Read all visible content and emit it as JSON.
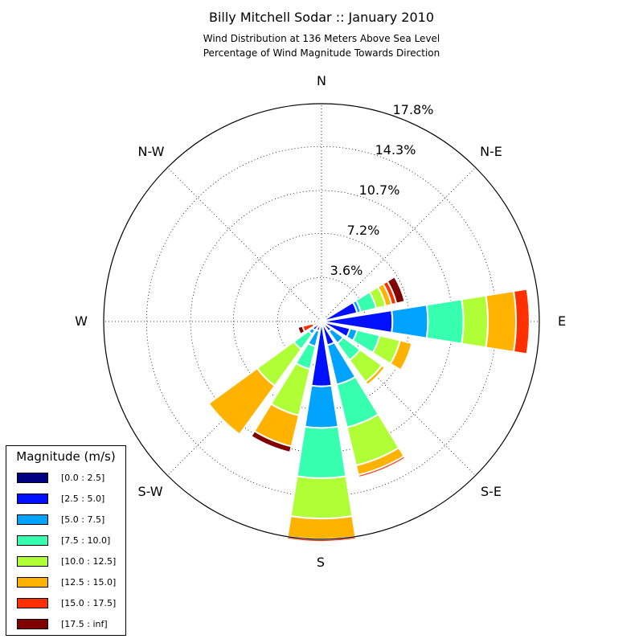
{
  "chart_data": {
    "type": "windrose",
    "title": "Billy Mitchell Sodar :: January 2010",
    "subtitles": [
      "Wind Distribution at 136 Meters Above Sea Level",
      "Percentage of Wind Magnitude Towards Direction"
    ],
    "directions": {
      "N": "N",
      "NE": "N-E",
      "E": "E",
      "SE": "S-E",
      "S": "S",
      "SW": "S-W",
      "W": "W",
      "NW": "N-W"
    },
    "radial_ticks": [
      "3.6%",
      "7.2%",
      "10.7%",
      "14.3%",
      "17.8%"
    ],
    "radial_max": 17.8,
    "radial_tick_values": [
      3.6,
      7.2,
      10.7,
      14.3,
      17.8
    ],
    "legend_title": "Magnitude (m/s)",
    "bins": [
      {
        "label": "[0.0 : 2.5]",
        "color": "#000080"
      },
      {
        "label": "[2.5 : 5.0]",
        "color": "#0010ff"
      },
      {
        "label": "[5.0 : 7.5]",
        "color": "#00a4ff"
      },
      {
        "label": "[7.5 : 10.0]",
        "color": "#36ffb0"
      },
      {
        "label": "[10.0 : 12.5]",
        "color": "#b0ff36"
      },
      {
        "label": "[12.5 : 15.0]",
        "color": "#ffb300"
      },
      {
        "label": "[15.0 : 17.5]",
        "color": "#ff3000"
      },
      {
        "label": "[17.5 : inf]",
        "color": "#800000"
      }
    ],
    "sectors": [
      {
        "direction_deg": 0,
        "cumulative": [
          0.1,
          0.4,
          0.5,
          0.5,
          0.5,
          0.5,
          0.5,
          0.5
        ]
      },
      {
        "direction_deg": 22.5,
        "cumulative": [
          0.1,
          0.3,
          0.4,
          0.4,
          0.4,
          0.4,
          0.4,
          0.4
        ]
      },
      {
        "direction_deg": 45,
        "cumulative": [
          0.1,
          0.3,
          0.3,
          0.3,
          0.3,
          0.3,
          0.3,
          0.3
        ]
      },
      {
        "direction_deg": 67.5,
        "cumulative": [
          0.2,
          3.0,
          3.3,
          4.6,
          5.4,
          5.9,
          6.3,
          7.0
        ]
      },
      {
        "direction_deg": 90,
        "cumulative": [
          0.2,
          5.8,
          8.7,
          11.6,
          13.6,
          15.9,
          17.0,
          17.0
        ]
      },
      {
        "direction_deg": 112.5,
        "cumulative": [
          0.2,
          2.4,
          3.0,
          4.9,
          6.6,
          7.6,
          7.7,
          7.7
        ]
      },
      {
        "direction_deg": 135,
        "cumulative": [
          0.2,
          1.0,
          2.2,
          3.9,
          6.1,
          6.4,
          6.4,
          6.4
        ]
      },
      {
        "direction_deg": 157.5,
        "cumulative": [
          0.2,
          2.0,
          5.3,
          8.9,
          12.1,
          12.9,
          13.1,
          13.1
        ]
      },
      {
        "direction_deg": 180,
        "cumulative": [
          0.2,
          5.3,
          8.7,
          12.8,
          16.1,
          17.8,
          18.0,
          18.0
        ]
      },
      {
        "direction_deg": 202.5,
        "cumulative": [
          0.2,
          0.8,
          2.1,
          4.0,
          7.9,
          10.5,
          10.5,
          11.0
        ]
      },
      {
        "direction_deg": 225,
        "cumulative": [
          0.2,
          0.9,
          1.3,
          2.8,
          6.5,
          11.4,
          11.5,
          11.5
        ]
      },
      {
        "direction_deg": 247.5,
        "cumulative": [
          0.1,
          0.3,
          0.3,
          0.3,
          0.4,
          0.7,
          1.6,
          2.0
        ]
      },
      {
        "direction_deg": 270,
        "cumulative": [
          0.1,
          0.2,
          0.2,
          0.2,
          0.2,
          0.2,
          0.2,
          0.2
        ]
      },
      {
        "direction_deg": 292.5,
        "cumulative": [
          0.1,
          0.2,
          0.2,
          0.2,
          0.2,
          0.2,
          0.2,
          0.2
        ]
      },
      {
        "direction_deg": 315,
        "cumulative": [
          0.1,
          0.2,
          0.2,
          0.2,
          0.2,
          0.2,
          0.2,
          0.2
        ]
      },
      {
        "direction_deg": 337.5,
        "cumulative": [
          0.1,
          0.2,
          0.2,
          0.2,
          0.2,
          0.2,
          0.2,
          0.2
        ]
      }
    ]
  }
}
